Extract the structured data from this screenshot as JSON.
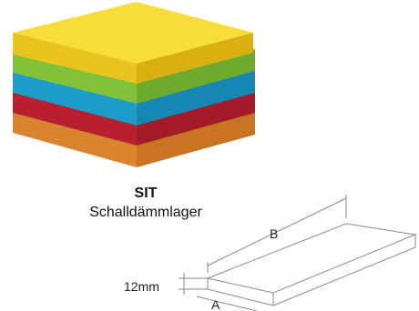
{
  "product": {
    "name": "SIT",
    "subtitle": "Schalldämmlager"
  },
  "layers": [
    {
      "name": "yellow-layer",
      "color": "#f5d020"
    },
    {
      "name": "green-layer",
      "color": "#8fd13d"
    },
    {
      "name": "blue-layer",
      "color": "#1ea7d6"
    },
    {
      "name": "red-layer",
      "color": "#c1273a"
    },
    {
      "name": "orange-layer",
      "color": "#e8953a"
    }
  ],
  "dimensions": {
    "length_label": "B",
    "width_label": "A",
    "thickness_label": "12mm"
  }
}
